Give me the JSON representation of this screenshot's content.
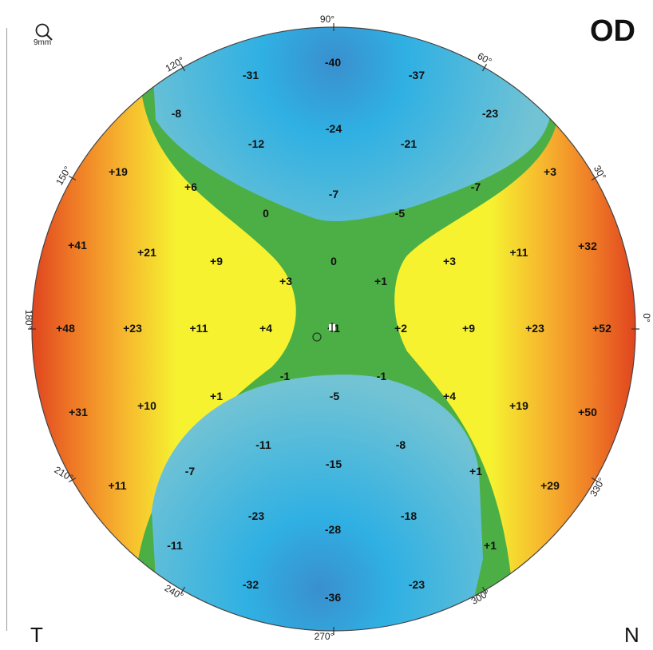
{
  "eye": "OD",
  "side_labels": {
    "temporal": "T",
    "nasal": "N"
  },
  "zoom": {
    "icon": "magnifier-icon",
    "text": "9mm"
  },
  "angle_labels": {
    "deg0": "0°",
    "deg30": "30°",
    "deg60": "60°",
    "deg90": "90°",
    "deg120": "120°",
    "deg150": "150°",
    "deg180": "180°",
    "deg210": "210°",
    "deg240": "240°",
    "deg270": "270°",
    "deg300": "300°",
    "deg330": "330°"
  },
  "map_values": [
    {
      "key": "v_n40",
      "text": "-40"
    },
    {
      "key": "v_n31",
      "text": "-31"
    },
    {
      "key": "v_n37",
      "text": "-37"
    },
    {
      "key": "v_n8a",
      "text": "-8"
    },
    {
      "key": "v_n23a",
      "text": "-23"
    },
    {
      "key": "v_n24",
      "text": "-24"
    },
    {
      "key": "v_n12",
      "text": "-12"
    },
    {
      "key": "v_n21",
      "text": "-21"
    },
    {
      "key": "v_p19a",
      "text": "+19"
    },
    {
      "key": "v_p3a",
      "text": "+3"
    },
    {
      "key": "v_p6",
      "text": "+6"
    },
    {
      "key": "v_n7a",
      "text": "-7"
    },
    {
      "key": "v_n7b",
      "text": "-7"
    },
    {
      "key": "v_0a",
      "text": "0"
    },
    {
      "key": "v_n5a",
      "text": "-5"
    },
    {
      "key": "v_p41",
      "text": "+41"
    },
    {
      "key": "v_p21",
      "text": "+21"
    },
    {
      "key": "v_p9a",
      "text": "+9"
    },
    {
      "key": "v_0b",
      "text": "0"
    },
    {
      "key": "v_p3b",
      "text": "+3"
    },
    {
      "key": "v_p11a",
      "text": "+11"
    },
    {
      "key": "v_p32",
      "text": "+32"
    },
    {
      "key": "v_p3c",
      "text": "+3"
    },
    {
      "key": "v_p1a",
      "text": "+1"
    },
    {
      "key": "v_p48",
      "text": "+48"
    },
    {
      "key": "v_p23a",
      "text": "+23"
    },
    {
      "key": "v_p11b",
      "text": "+11"
    },
    {
      "key": "v_p4a",
      "text": "+4"
    },
    {
      "key": "v_p1b",
      "text": "+1"
    },
    {
      "key": "v_p2",
      "text": "+2"
    },
    {
      "key": "v_p9b",
      "text": "+9"
    },
    {
      "key": "v_p23b",
      "text": "+23"
    },
    {
      "key": "v_p52",
      "text": "+52"
    },
    {
      "key": "v_n1a",
      "text": "-1"
    },
    {
      "key": "v_n1b",
      "text": "-1"
    },
    {
      "key": "v_p31",
      "text": "+31"
    },
    {
      "key": "v_p10",
      "text": "+10"
    },
    {
      "key": "v_p1c",
      "text": "+1"
    },
    {
      "key": "v_n5b",
      "text": "-5"
    },
    {
      "key": "v_p4b",
      "text": "+4"
    },
    {
      "key": "v_p19b",
      "text": "+19"
    },
    {
      "key": "v_p50",
      "text": "+50"
    },
    {
      "key": "v_n11a",
      "text": "-11"
    },
    {
      "key": "v_n8b",
      "text": "-8"
    },
    {
      "key": "v_n7c",
      "text": "-7"
    },
    {
      "key": "v_n15",
      "text": "-15"
    },
    {
      "key": "v_p1d",
      "text": "+1"
    },
    {
      "key": "v_p11c",
      "text": "+11"
    },
    {
      "key": "v_p29",
      "text": "+29"
    },
    {
      "key": "v_n23b",
      "text": "-23"
    },
    {
      "key": "v_n18",
      "text": "-18"
    },
    {
      "key": "v_n28",
      "text": "-28"
    },
    {
      "key": "v_n11b",
      "text": "-11"
    },
    {
      "key": "v_p1e",
      "text": "+1"
    },
    {
      "key": "v_n32",
      "text": "-32"
    },
    {
      "key": "v_n23c",
      "text": "-23"
    },
    {
      "key": "v_n36",
      "text": "-36"
    }
  ],
  "colors": {
    "map_blue_deep": "#3a8fce",
    "map_blue": "#2fb0e3",
    "map_teal": "#72c3d4",
    "map_green": "#4caf46",
    "map_yellow": "#f6f230",
    "map_orange": "#f4a329",
    "map_red": "#e0451f"
  }
}
